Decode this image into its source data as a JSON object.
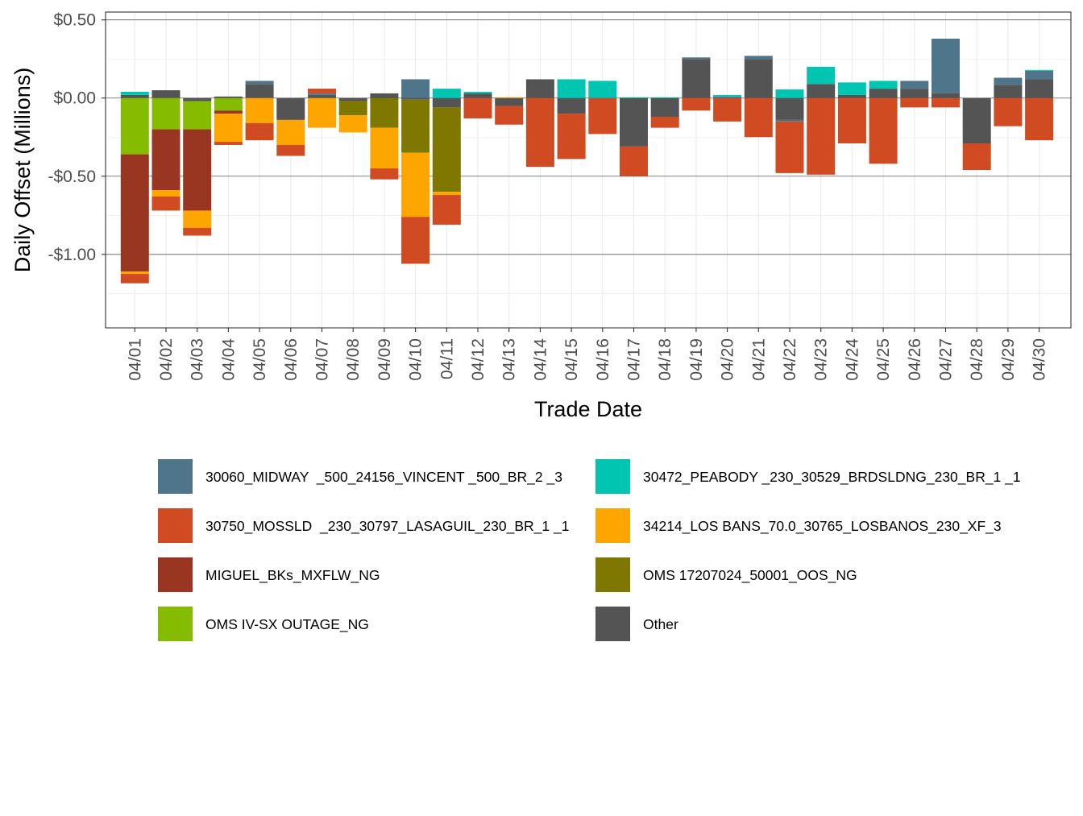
{
  "chart_data": {
    "type": "bar",
    "stacked": true,
    "title": "",
    "xlabel": "Trade Date",
    "ylabel": "Daily Offset (Millions)",
    "ylim": [
      -1.47,
      0.55
    ],
    "yticks": [
      0.5,
      0.0,
      -0.5,
      -1.0
    ],
    "ytick_labels": [
      "$0.50",
      "$0.00",
      "-$0.50",
      "-$1.00"
    ],
    "categories": [
      "04/01",
      "04/02",
      "04/03",
      "04/04",
      "04/05",
      "04/06",
      "04/07",
      "04/08",
      "04/09",
      "04/10",
      "04/11",
      "04/12",
      "04/13",
      "04/14",
      "04/15",
      "04/16",
      "04/17",
      "04/18",
      "04/19",
      "04/20",
      "04/21",
      "04/22",
      "04/23",
      "04/24",
      "04/25",
      "04/26",
      "04/27",
      "04/28",
      "04/29",
      "04/30"
    ],
    "stack_order": [
      "Other",
      "30060_MIDWAY  _500_24156_VINCENT _500_BR_2 _3",
      "30472_PEABODY _230_30529_BRDSLDNG_230_BR_1 _1",
      "OMS IV-SX OUTAGE_NG",
      "MIGUEL_BKs_MXFLW_NG",
      "OMS 17207024_50001_OOS_NG",
      "34214_LOS BANS_70.0_30765_LOSBANOS_230_XF_3",
      "30750_MOSSLD  _230_30797_LASAGUIL_230_BR_1 _1"
    ],
    "series": [
      {
        "name": "30060_MIDWAY  _500_24156_VINCENT _500_BR_2 _3",
        "color": "#4E7589",
        "values": [
          0,
          0,
          0,
          0,
          0.02,
          0,
          0.01,
          0,
          0,
          0.12,
          0,
          0,
          0,
          0,
          0,
          0,
          0,
          0,
          0.01,
          0.01,
          0.02,
          -0.01,
          0,
          0,
          0,
          0.05,
          0.35,
          0,
          0.045,
          0.055
        ]
      },
      {
        "name": "30472_PEABODY _230_30529_BRDSLDNG_230_BR_1 _1",
        "color": "#00C5B0",
        "values": [
          0.02,
          0,
          0,
          0,
          0,
          0,
          0,
          0,
          0,
          0,
          0.06,
          0.01,
          0,
          0,
          0.12,
          0.11,
          0.005,
          0.005,
          0,
          0.01,
          0,
          0.055,
          0.11,
          0.08,
          0.05,
          0,
          0,
          0,
          0,
          0.005
        ]
      },
      {
        "name": "30750_MOSSLD  _230_30797_LASAGUIL_230_BR_1 _1",
        "color": "#D04A22",
        "values": [
          -0.06,
          -0.09,
          -0.05,
          -0.02,
          -0.11,
          -0.07,
          0.03,
          0,
          -0.07,
          -0.3,
          -0.19,
          -0.13,
          -0.12,
          -0.44,
          -0.29,
          -0.23,
          -0.19,
          -0.07,
          -0.08,
          -0.15,
          -0.25,
          -0.33,
          -0.49,
          -0.29,
          -0.42,
          -0.06,
          -0.06,
          -0.17,
          -0.18,
          -0.27
        ]
      },
      {
        "name": "34214_LOS BANS_70.0_30765_LOSBANOS_230_XF_3",
        "color": "#FFA500",
        "values": [
          -0.015,
          -0.04,
          -0.11,
          -0.18,
          -0.16,
          -0.16,
          -0.19,
          -0.11,
          -0.26,
          -0.41,
          -0.02,
          0,
          0.005,
          0,
          0,
          0,
          0,
          0,
          0,
          0,
          0,
          0,
          0,
          0,
          0,
          0,
          0,
          0,
          0,
          0
        ]
      },
      {
        "name": "MIGUEL_BKs_MXFLW_NG",
        "color": "#983622",
        "values": [
          -0.75,
          -0.39,
          -0.52,
          -0.02,
          0,
          0,
          0,
          0,
          0,
          0,
          0,
          0,
          0,
          0,
          0,
          0,
          0,
          0,
          0,
          0,
          0,
          0,
          0,
          0,
          0,
          0,
          0,
          0,
          0,
          0
        ]
      },
      {
        "name": "OMS 17207024_50001_OOS_NG",
        "color": "#7F7800",
        "values": [
          0,
          0,
          0,
          0,
          0,
          0,
          0,
          -0.09,
          -0.19,
          -0.34,
          -0.54,
          0,
          0,
          0,
          0,
          0,
          0,
          0,
          0,
          0,
          0,
          0,
          0,
          0,
          0,
          0,
          0,
          0,
          0,
          0
        ]
      },
      {
        "name": "OMS IV-SX OUTAGE_NG",
        "color": "#86BC00",
        "values": [
          -0.36,
          -0.2,
          -0.18,
          -0.08,
          0,
          0,
          0,
          0,
          0,
          0,
          0,
          0,
          0,
          0,
          0,
          0,
          0,
          0,
          0,
          0,
          0,
          0,
          0,
          0,
          0,
          0,
          0,
          0,
          0,
          0
        ]
      },
      {
        "name": "Other",
        "color": "#545454",
        "values": [
          0.02,
          0.05,
          -0.02,
          0.01,
          0.09,
          -0.14,
          0.02,
          -0.02,
          0.03,
          -0.01,
          -0.06,
          0.03,
          -0.05,
          0.12,
          -0.1,
          0.0,
          -0.31,
          -0.12,
          0.25,
          0.0,
          0.25,
          -0.14,
          0.09,
          0.02,
          0.06,
          0.06,
          0.03,
          -0.29,
          0.085,
          0.12
        ]
      }
    ],
    "legend": {
      "position": "bottom",
      "columns": [
        [
          "30060_MIDWAY  _500_24156_VINCENT _500_BR_2 _3",
          "30750_MOSSLD  _230_30797_LASAGUIL_230_BR_1 _1",
          "MIGUEL_BKs_MXFLW_NG",
          "OMS IV-SX OUTAGE_NG"
        ],
        [
          "30472_PEABODY _230_30529_BRDSLDNG_230_BR_1 _1",
          "34214_LOS BANS_70.0_30765_LOSBANOS_230_XF_3",
          "OMS 17207024_50001_OOS_NG",
          "Other"
        ]
      ]
    },
    "grid": true
  }
}
